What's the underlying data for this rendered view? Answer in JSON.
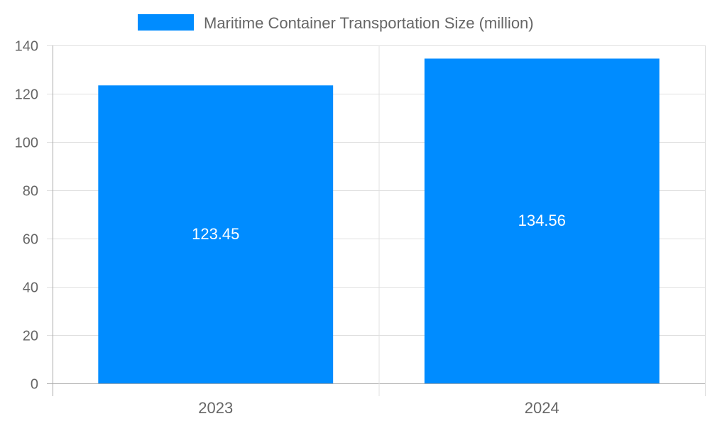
{
  "chart_data": {
    "type": "bar",
    "categories": [
      "2023",
      "2024"
    ],
    "series": [
      {
        "name": "Maritime Container Transportation Size (million)",
        "values": [
          123.45,
          134.56
        ],
        "color": "#008cff"
      }
    ],
    "data_labels": [
      "123.45",
      "134.56"
    ],
    "title": "",
    "xlabel": "",
    "ylabel": "",
    "ylim": [
      0,
      140
    ],
    "yticks": [
      "0",
      "20",
      "40",
      "60",
      "80",
      "100",
      "120",
      "140"
    ],
    "grid": true,
    "legend": "top-center",
    "text_color": "#666666",
    "grid_color": "#e0e0e0",
    "label_color": "#ffffff"
  }
}
